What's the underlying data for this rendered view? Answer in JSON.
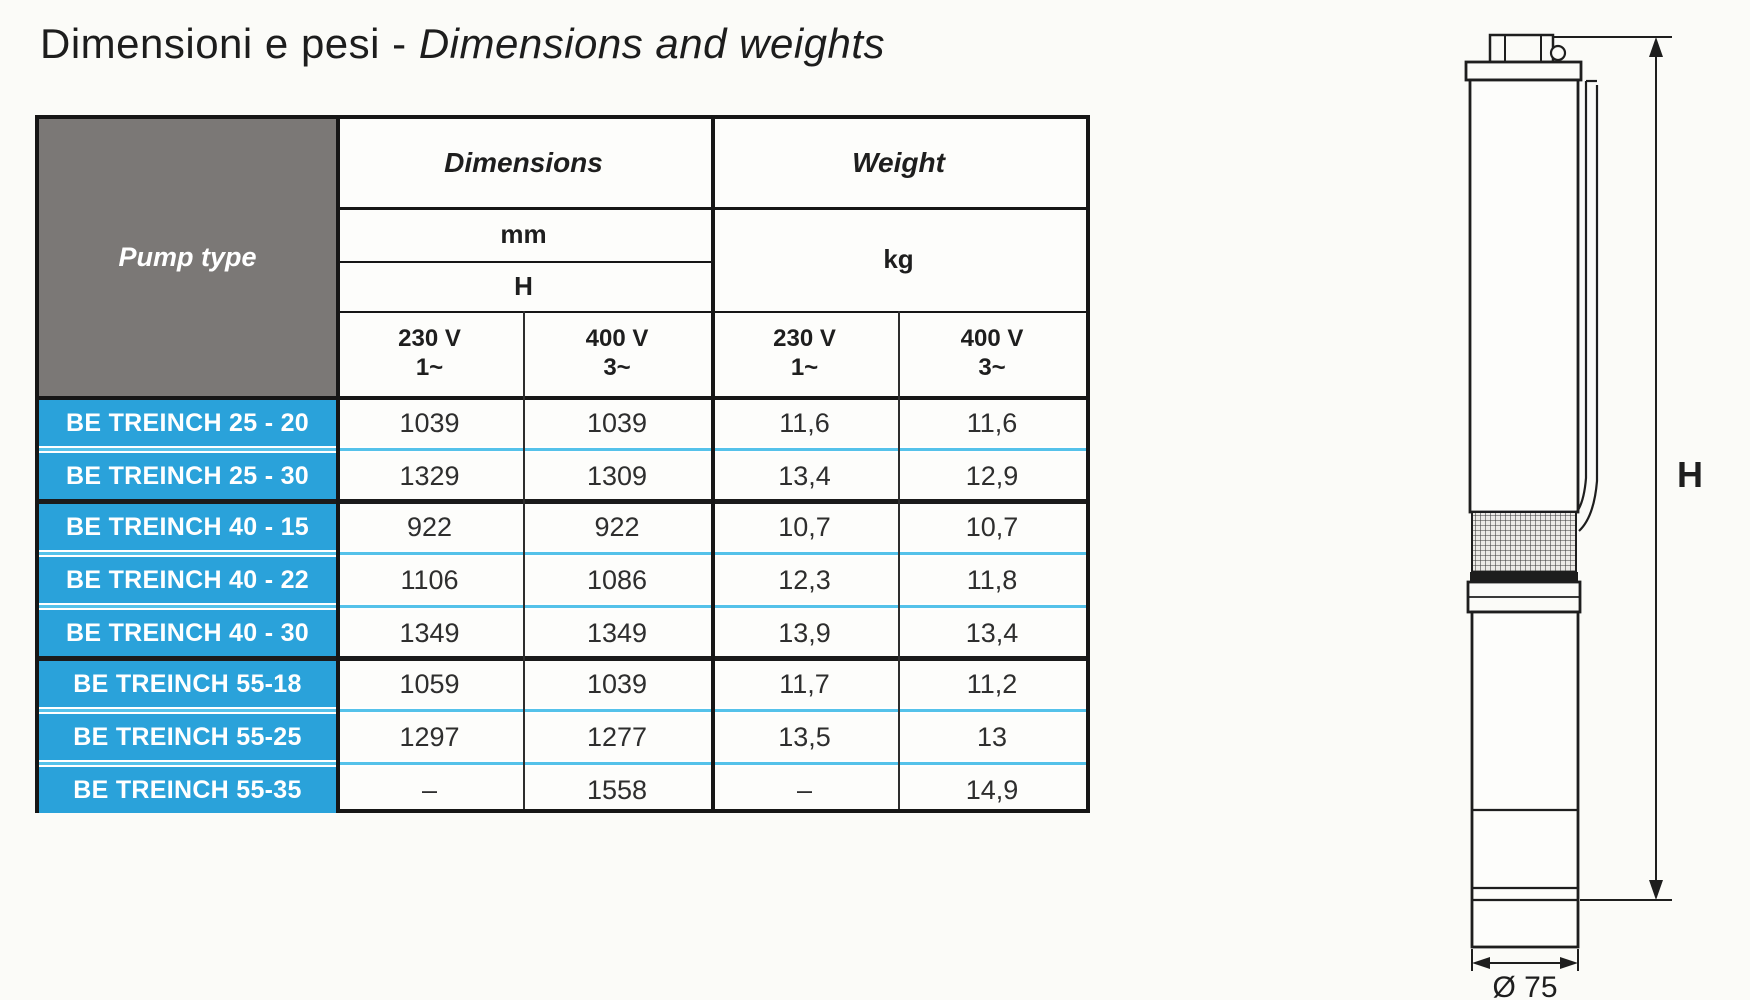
{
  "page": {
    "title_it": "Dimensioni e pesi",
    "title_sep": " - ",
    "title_en": "Dimensions and weights"
  },
  "table": {
    "pump_type_header": "Pump type",
    "dimensions_header": "Dimensions",
    "weight_header": "Weight",
    "dimensions_unit": "mm",
    "dimensions_sub": "H",
    "weight_unit": "kg",
    "voltage_headers": [
      {
        "voltage": "230 V",
        "phase": "1~"
      },
      {
        "voltage": "400 V",
        "phase": "3~"
      },
      {
        "voltage": "230 V",
        "phase": "1~"
      },
      {
        "voltage": "400 V",
        "phase": "3~"
      }
    ],
    "rows": [
      {
        "pump": "BE TREINCH 25 - 20",
        "h_230": "1039",
        "h_400": "1039",
        "kg_230": "11,6",
        "kg_400": "11,6",
        "group_end": false
      },
      {
        "pump": "BE TREINCH 25 - 30",
        "h_230": "1329",
        "h_400": "1309",
        "kg_230": "13,4",
        "kg_400": "12,9",
        "group_end": true
      },
      {
        "pump": "BE TREINCH 40 - 15",
        "h_230": "922",
        "h_400": "922",
        "kg_230": "10,7",
        "kg_400": "10,7",
        "group_end": false
      },
      {
        "pump": "BE TREINCH 40 - 22",
        "h_230": "1106",
        "h_400": "1086",
        "kg_230": "12,3",
        "kg_400": "11,8",
        "group_end": false
      },
      {
        "pump": "BE TREINCH 40 - 30",
        "h_230": "1349",
        "h_400": "1349",
        "kg_230": "13,9",
        "kg_400": "13,4",
        "group_end": true
      },
      {
        "pump": "BE TREINCH 55-18",
        "h_230": "1059",
        "h_400": "1039",
        "kg_230": "11,7",
        "kg_400": "11,2",
        "group_end": false
      },
      {
        "pump": "BE TREINCH 55-25",
        "h_230": "1297",
        "h_400": "1277",
        "kg_230": "13,5",
        "kg_400": "13",
        "group_end": false
      },
      {
        "pump": "BE TREINCH 55-35",
        "h_230": "–",
        "h_400": "1558",
        "kg_230": "–",
        "kg_400": "14,9",
        "group_end": false
      }
    ]
  },
  "drawing": {
    "height_label": "H",
    "diameter_label": "Ø 75"
  },
  "colors": {
    "row_blue": "#2aa2da",
    "separator_cyan": "#55c2ea",
    "header_gray": "#7b7876",
    "border_black": "#161616"
  }
}
